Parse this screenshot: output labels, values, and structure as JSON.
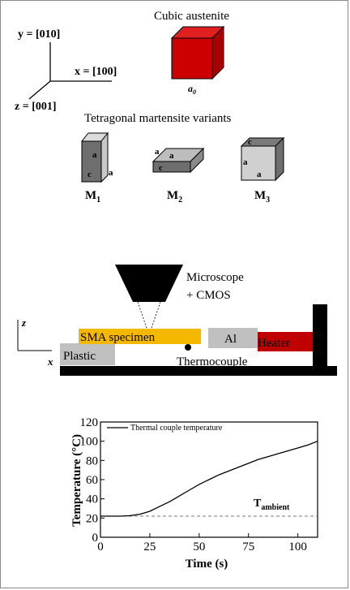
{
  "crystal": {
    "axes": {
      "y": "y = [010]",
      "x": "x = [100]",
      "z": "z = [001]"
    },
    "austenite_title": "Cubic austenite",
    "austenite_label": "a",
    "austenite_label_sub": "0",
    "martensite_title": "Tetragonal martensite variants",
    "variant_letters": {
      "a": "a",
      "c": "c"
    },
    "variants": [
      {
        "label": "M",
        "sub": "1"
      },
      {
        "label": "M",
        "sub": "2"
      },
      {
        "label": "M",
        "sub": "3"
      }
    ]
  },
  "setup": {
    "microscope": "Microscope",
    "cmos": "+ CMOS",
    "axis_z": "z",
    "axis_x": "x",
    "specimen": "SMA specimen",
    "al": "Al",
    "heater": "Heater",
    "plastic": "Plastic",
    "thermocouple": "Thermocouple"
  },
  "colors": {
    "austenite": "#cc0000",
    "specimen": "#f5b800",
    "heater": "#c00000",
    "block": "#c0c0c0",
    "dark": "#000000"
  },
  "chart_data": {
    "type": "line",
    "title": "",
    "xlabel": "Time (s)",
    "ylabel": "Temperature (°C)",
    "xlim": [
      0,
      110
    ],
    "ylim": [
      0,
      120
    ],
    "xticks": [
      0,
      25,
      50,
      75,
      100
    ],
    "yticks": [
      0,
      20,
      40,
      60,
      80,
      100,
      120
    ],
    "legend": "top-left",
    "series": [
      {
        "name": "Thermal couple temperature",
        "style": "solid",
        "x": [
          0,
          5,
          10,
          15,
          20,
          25,
          30,
          35,
          40,
          45,
          50,
          55,
          60,
          65,
          70,
          75,
          80,
          85,
          90,
          95,
          100,
          105,
          110
        ],
        "y": [
          22,
          22,
          22,
          22.5,
          24,
          27,
          32,
          37,
          43,
          49,
          55,
          60,
          65,
          69,
          73,
          77,
          81,
          84,
          87,
          90,
          93,
          96,
          100
        ]
      }
    ],
    "reference_line": {
      "y": 22,
      "style": "dashed",
      "label": "T",
      "label_sub": "ambient"
    }
  }
}
